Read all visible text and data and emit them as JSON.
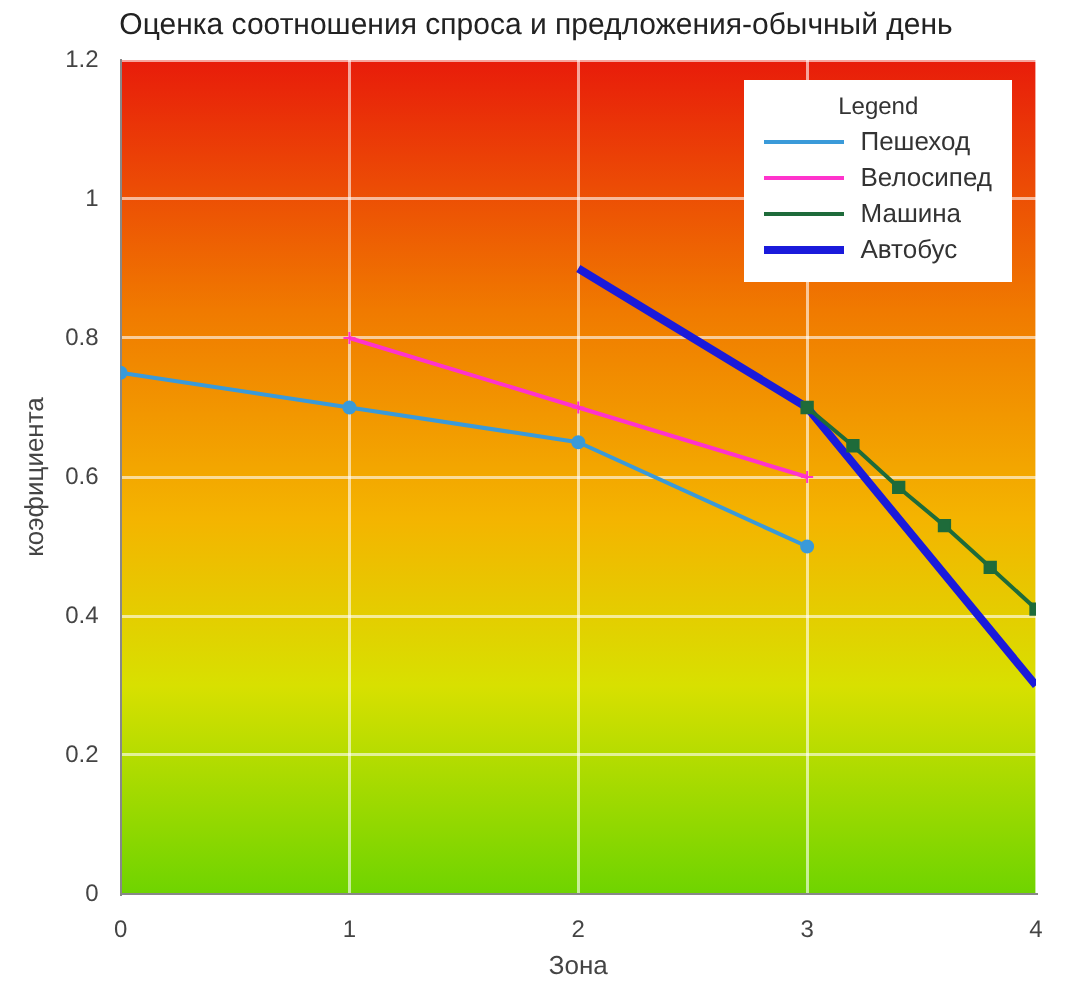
{
  "chart_data": {
    "type": "line",
    "title": "Оценка соотношения спроса и предложения-обычный день",
    "xlabel": "Зона",
    "ylabel": "коэфициента",
    "legend_title": "Legend",
    "legend": "top right",
    "grid": true,
    "xlim": [
      0,
      4
    ],
    "xticks": [
      0,
      1,
      2,
      3,
      4
    ],
    "ylim": [
      0,
      1.2
    ],
    "yticks": [
      0,
      0.2,
      0.4,
      0.6,
      0.8,
      1,
      1.2
    ],
    "series": [
      {
        "name": "Пешеход",
        "color": "#3a9ad9",
        "marker": "circle",
        "x": [
          0,
          1,
          2,
          3
        ],
        "values": [
          0.75,
          0.7,
          0.65,
          0.5
        ]
      },
      {
        "name": "Велосипед",
        "color": "#ff33cc",
        "marker": "cross",
        "x": [
          1,
          2,
          3
        ],
        "values": [
          0.8,
          0.7,
          0.6
        ]
      },
      {
        "name": "Машина",
        "color": "#1e6b3a",
        "marker": "square",
        "x": [
          3,
          3.2,
          3.4,
          3.6,
          3.8,
          4
        ],
        "values": [
          0.7,
          0.645,
          0.585,
          0.53,
          0.47,
          0.41
        ]
      },
      {
        "name": "Автобус",
        "color": "#1a1adb",
        "marker": "none",
        "x": [
          2,
          3,
          4
        ],
        "values": [
          0.9,
          0.7,
          0.3
        ]
      }
    ]
  }
}
